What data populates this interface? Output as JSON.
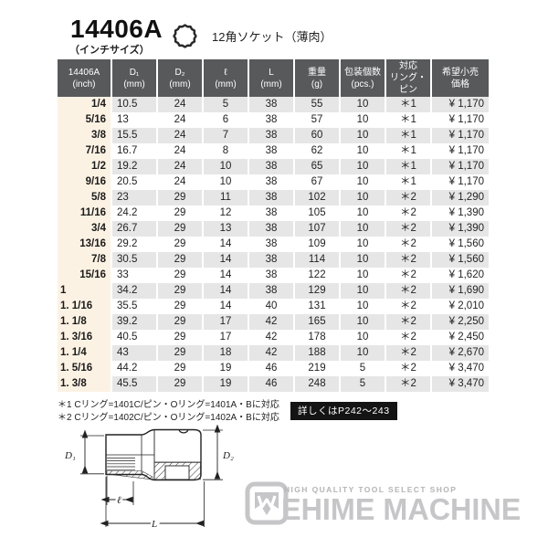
{
  "header": {
    "model": "14406A",
    "model_sub": "（インチサイズ）",
    "icon": "12-point-socket-icon",
    "product_type": "12角ソケット（薄肉）"
  },
  "table": {
    "columns": [
      {
        "l1": "14406A",
        "l2": "(inch)"
      },
      {
        "l1": "D₁",
        "l2": "(mm)"
      },
      {
        "l1": "D₂",
        "l2": "(mm)"
      },
      {
        "l1": "ℓ",
        "l2": "(mm)"
      },
      {
        "l1": "L",
        "l2": "(mm)"
      },
      {
        "l1": "重量",
        "l2": "(g)"
      },
      {
        "l1": "包装個数",
        "l2": "(pcs.)"
      },
      {
        "l1": "対応",
        "l2": "リング・ピン"
      },
      {
        "l1": "希望小売",
        "l2": "価格"
      }
    ],
    "rows": [
      [
        "1/4",
        "10.5",
        "24",
        "5",
        "38",
        "55",
        "10",
        "＊1",
        "¥ 1,170"
      ],
      [
        "5/16",
        "13",
        "24",
        "6",
        "38",
        "57",
        "10",
        "＊1",
        "¥ 1,170"
      ],
      [
        "3/8",
        "15.5",
        "24",
        "7",
        "38",
        "60",
        "10",
        "＊1",
        "¥ 1,170"
      ],
      [
        "7/16",
        "16.7",
        "24",
        "8",
        "38",
        "62",
        "10",
        "＊1",
        "¥ 1,170"
      ],
      [
        "1/2",
        "19.2",
        "24",
        "10",
        "38",
        "65",
        "10",
        "＊1",
        "¥ 1,170"
      ],
      [
        "9/16",
        "20.5",
        "24",
        "10",
        "38",
        "67",
        "10",
        "＊1",
        "¥ 1,170"
      ],
      [
        "5/8",
        "23",
        "29",
        "11",
        "38",
        "102",
        "10",
        "＊2",
        "¥ 1,290"
      ],
      [
        "11/16",
        "24.2",
        "29",
        "12",
        "38",
        "105",
        "10",
        "＊2",
        "¥ 1,390"
      ],
      [
        "3/4",
        "26.7",
        "29",
        "13",
        "38",
        "107",
        "10",
        "＊2",
        "¥ 1,390"
      ],
      [
        "13/16",
        "29.2",
        "29",
        "14",
        "38",
        "109",
        "10",
        "＊2",
        "¥ 1,560"
      ],
      [
        "7/8",
        "30.5",
        "29",
        "14",
        "38",
        "114",
        "10",
        "＊2",
        "¥ 1,560"
      ],
      [
        "15/16",
        "33",
        "29",
        "14",
        "38",
        "122",
        "10",
        "＊2",
        "¥ 1,620"
      ],
      [
        "1",
        "34.2",
        "29",
        "14",
        "38",
        "129",
        "10",
        "＊2",
        "¥ 1,690"
      ],
      [
        "1. 1/16",
        "35.5",
        "29",
        "14",
        "40",
        "131",
        "10",
        "＊2",
        "¥ 2,010"
      ],
      [
        "1. 1/8",
        "39.2",
        "29",
        "17",
        "42",
        "165",
        "10",
        "＊2",
        "¥ 2,250"
      ],
      [
        "1. 3/16",
        "40.5",
        "29",
        "17",
        "42",
        "178",
        "10",
        "＊2",
        "¥ 2,450"
      ],
      [
        "1. 1/4",
        "43",
        "29",
        "18",
        "42",
        "188",
        "10",
        "＊2",
        "¥ 2,670"
      ],
      [
        "1. 5/16",
        "44.2",
        "29",
        "19",
        "46",
        "219",
        "5",
        "＊2",
        "¥ 3,470"
      ],
      [
        "1. 3/8",
        "45.5",
        "29",
        "19",
        "46",
        "248",
        "5",
        "＊2",
        "¥ 3,470"
      ]
    ]
  },
  "footnotes": {
    "note1": "＊1 Cリング=1401C/ピン・Oリング=1401A・Bに対応",
    "note2": "＊2 Cリング=1402C/ピン・Oリング=1402A・Bに対応",
    "badge": "詳しくはP242～243"
  },
  "diagram": {
    "labels": {
      "d1": "D₁",
      "d2": "D₂",
      "l_small": "ℓ",
      "l_big": "L"
    }
  },
  "logo": {
    "tagline": "HIGH QUALITY TOOL SELECT SHOP",
    "name": "EHIME MACHINE"
  },
  "colors": {
    "header_bg": "#58595b",
    "row_shade": "#e6e6e7",
    "inch_col_bg": "#fcf2e4",
    "badge_bg": "#141414",
    "logo_gray": "#c6c6c8"
  }
}
